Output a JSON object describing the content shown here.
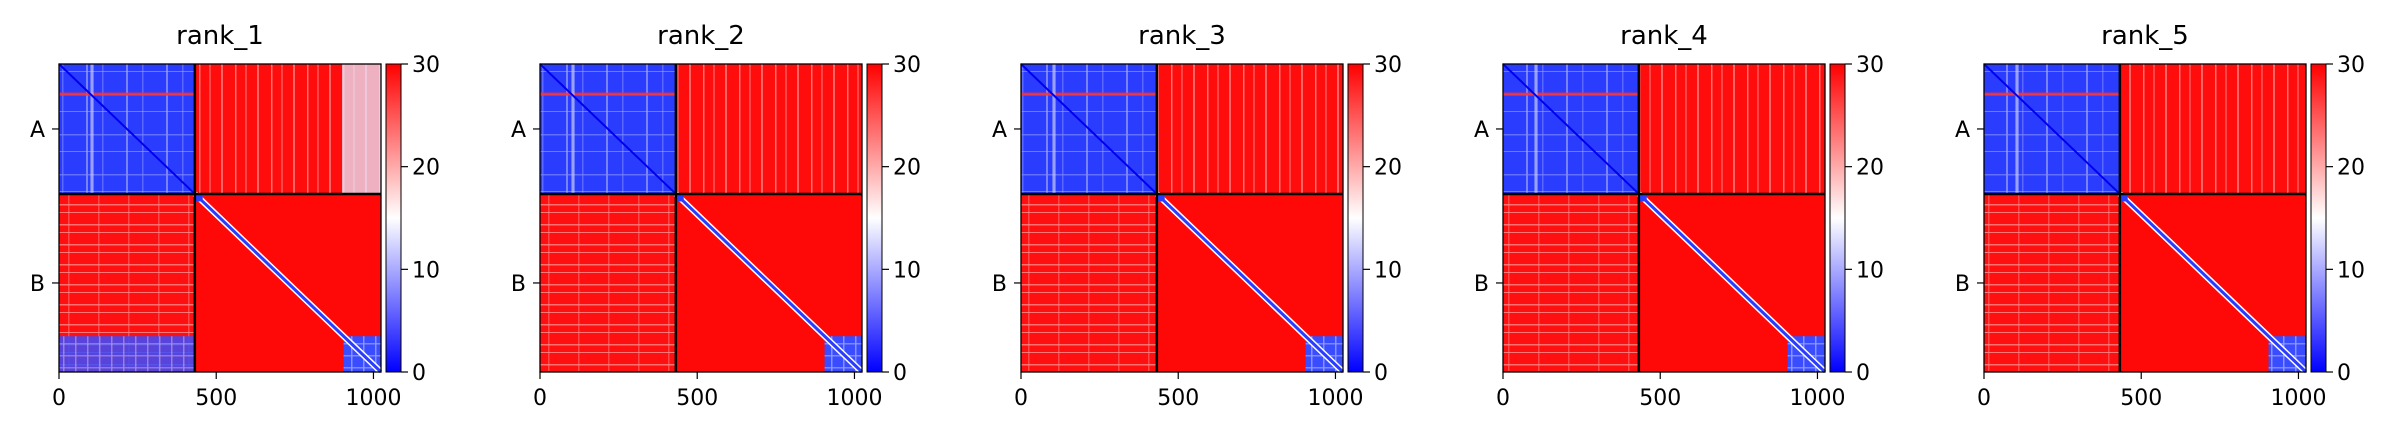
{
  "chart_data": {
    "type": "heatmap",
    "panels": [
      {
        "title": "rank_1"
      },
      {
        "title": "rank_2"
      },
      {
        "title": "rank_3"
      },
      {
        "title": "rank_4"
      },
      {
        "title": "rank_5"
      }
    ],
    "chains": [
      {
        "label": "A",
        "start": 0,
        "end": 432
      },
      {
        "label": "B",
        "start": 432,
        "end": 1024
      }
    ],
    "xlim": [
      0,
      1024
    ],
    "ylim": [
      1024,
      0
    ],
    "xticks": [
      0,
      500,
      1000
    ],
    "colorbar": {
      "vmin": 0,
      "vmax": 30,
      "ticks": [
        0,
        10,
        20,
        30
      ],
      "cmap": "bwr"
    },
    "colors": {
      "low": "#0000ff",
      "mid": "#ffffff",
      "high": "#ff0000",
      "boundary": "#000000"
    }
  }
}
